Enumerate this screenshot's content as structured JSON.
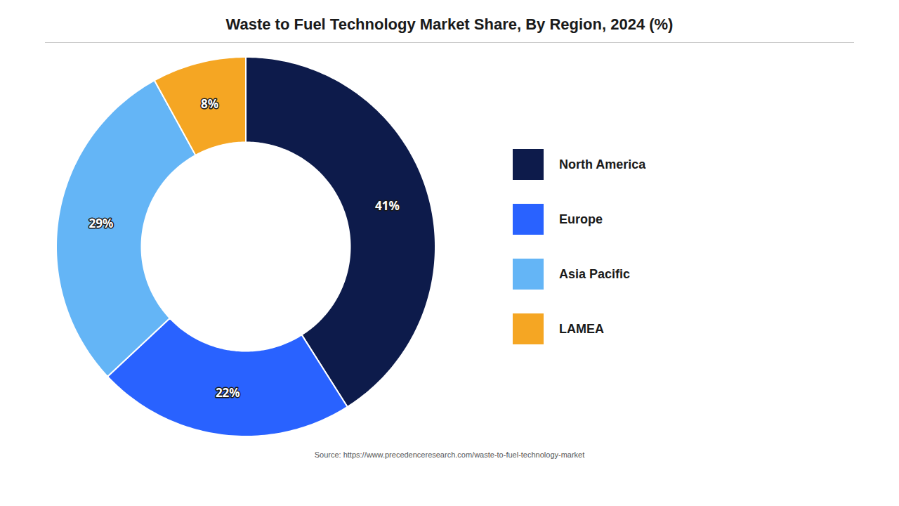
{
  "chart_data": {
    "type": "pie",
    "title": "Waste to Fuel Technology Market Share, By Region, 2024 (%)",
    "categories": [
      "North America",
      "Europe",
      "Asia Pacific",
      "LAMEA"
    ],
    "values": [
      41,
      22,
      29,
      8
    ],
    "value_labels": [
      "41%",
      "22%",
      "29%",
      "8%"
    ],
    "colors": [
      "#0d1b4b",
      "#2962ff",
      "#64b5f6",
      "#f5a623"
    ],
    "data_labels": true,
    "legend": "right",
    "annotations": [
      "Source: https://www.precedenceresearch.com/waste-to-fuel-technology-market"
    ]
  }
}
